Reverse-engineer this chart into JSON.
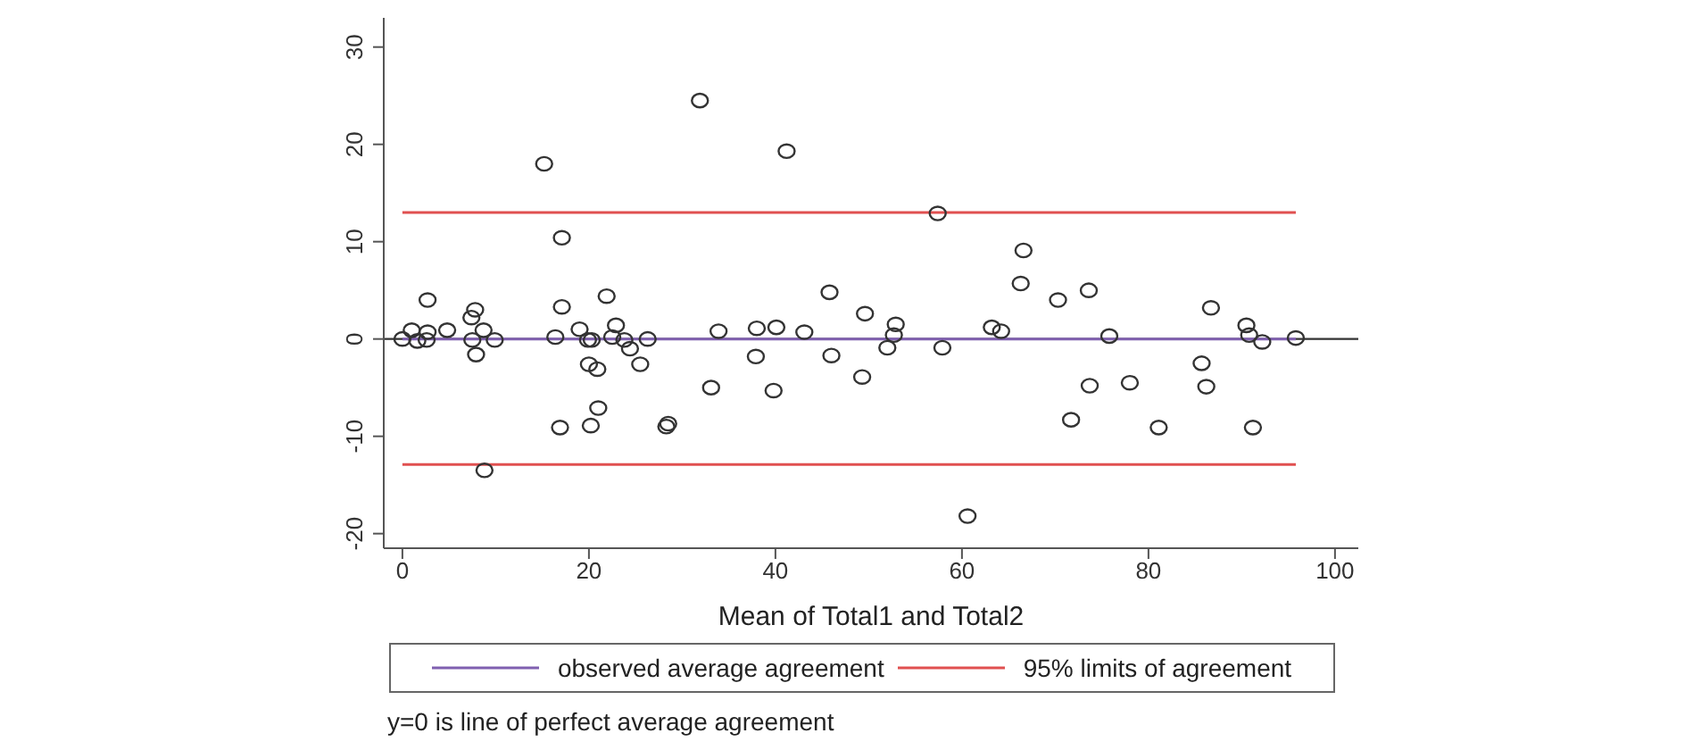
{
  "chart_data": {
    "type": "scatter",
    "xlabel": "Mean of Total1 and Total2",
    "xlim": [
      -2,
      102.5
    ],
    "xticks": [
      0,
      20,
      40,
      60,
      80,
      100
    ],
    "ylim": [
      -21.5,
      33
    ],
    "yticks": [
      -20,
      -10,
      0,
      10,
      20,
      30
    ],
    "grid": false,
    "legend": "bottom",
    "marker": "circle",
    "annotations": [
      "y=0 is line of perfect average agreement"
    ],
    "ref_lines": [
      {
        "axis": "y",
        "value": 0,
        "color": "#333333"
      }
    ],
    "series": [
      {
        "color": "#333333",
        "x": [
          0,
          1,
          1.6,
          2.6,
          2.7,
          2.7,
          4.8,
          7.4,
          7.8,
          7.5,
          7.9,
          8.7,
          8.8,
          9.9,
          15.2,
          17.1,
          17.1,
          16.4,
          16.9,
          19.0,
          19.9,
          20.3,
          20.0,
          20.9,
          20.2,
          21.0,
          21.9,
          22.9,
          22.5,
          23.8,
          24.4,
          25.5,
          26.3,
          28.3,
          28.5,
          31.9,
          33.1,
          33.9,
          38.0,
          37.9,
          40.1,
          39.8,
          41.2,
          43.1,
          45.8,
          46.0,
          49.6,
          49.3,
          52.9,
          52.7,
          52.0,
          57.4,
          57.9,
          60.6,
          63.2,
          64.2,
          66.6,
          66.3,
          70.3,
          73.6,
          71.7,
          73.7,
          75.8,
          78.0,
          81.1,
          86.7,
          85.7,
          86.2,
          90.5,
          90.8,
          91.2,
          92.2,
          95.8
        ],
        "values": [
          0,
          0.9,
          -0.2,
          -0.1,
          0.7,
          4.0,
          0.9,
          2.2,
          3.0,
          -0.1,
          -1.6,
          0.9,
          -13.5,
          -0.1,
          18.0,
          10.4,
          3.3,
          0.2,
          -9.1,
          1.0,
          -0.1,
          -0.1,
          -2.6,
          -3.1,
          -8.9,
          -7.1,
          4.4,
          1.4,
          0.2,
          -0.1,
          -1.0,
          -2.6,
          0,
          -9.0,
          -8.7,
          24.5,
          -5.0,
          0.8,
          1.1,
          -1.8,
          1.2,
          -5.3,
          19.3,
          0.7,
          4.8,
          -1.7,
          2.6,
          -3.9,
          1.5,
          0.4,
          -0.9,
          12.9,
          -0.9,
          -18.2,
          1.2,
          0.8,
          9.1,
          5.7,
          4.0,
          5.0,
          -8.3,
          -4.8,
          0.3,
          -4.5,
          -9.1,
          3.2,
          -2.5,
          -4.9,
          1.4,
          0.4,
          -9.1,
          -0.3,
          0.1
        ]
      },
      {
        "type": "line",
        "name": "observed average agreement",
        "color": "#8060b0",
        "marker": "none",
        "x": [
          0,
          95.8
        ],
        "values": [
          0,
          0
        ]
      },
      {
        "type": "line",
        "name": "95% limits of agreement",
        "color": "#e05050",
        "marker": "none",
        "x": [
          0,
          95.8
        ],
        "values": [
          13.0,
          13.0
        ]
      },
      {
        "type": "line",
        "color": "#e05050",
        "marker": "none",
        "x": [
          0,
          95.8
        ],
        "values": [
          -12.9,
          -12.9
        ]
      }
    ]
  }
}
